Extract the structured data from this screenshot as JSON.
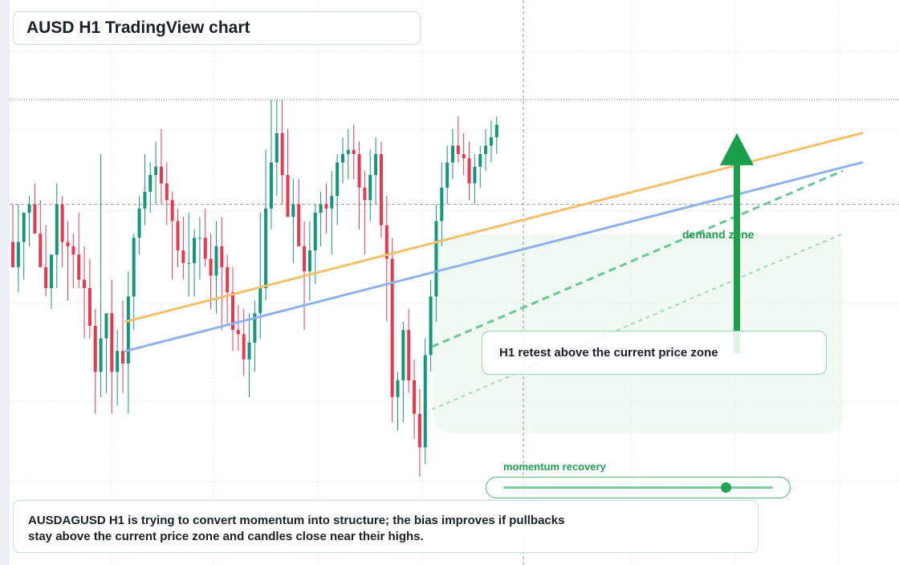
{
  "header": {
    "title": "AUSD H1 TradingView chart"
  },
  "annotations": {
    "callout": "H1 retest above the current price zone",
    "zone_label": "demand zone",
    "momentum_label": "momentum recovery",
    "momentum_level": 0.82
  },
  "summary": {
    "text": "AUSDAGUSD H1 is trying to convert momentum into structure; the bias improves if pullbacks stay above the current price zone and candles close near their highs."
  },
  "colors": {
    "bull": "#14967a",
    "bear": "#e8384f",
    "ma_fast": "#f5c06b",
    "ma_slow": "#8fb2ec",
    "forecast": "#5cc386",
    "arrow": "#1aa04a",
    "grid": "#dfe5ee"
  },
  "chart_data": {
    "type": "candlestick",
    "price_range": [
      0,
      100
    ],
    "resistance_level": 95,
    "current_price_level": 70,
    "ma_fast": {
      "start": 42,
      "end": 87
    },
    "ma_slow": {
      "start": 35,
      "end": 80
    },
    "forecast_paths": [
      {
        "style": "dashed",
        "start": 36,
        "end": 78
      },
      {
        "style": "dotted",
        "start": 21,
        "end": 63
      }
    ],
    "arrow": {
      "from": 35,
      "to": 87
    },
    "candles": [
      {
        "o": 61,
        "h": 70,
        "l": 55,
        "c": 55
      },
      {
        "o": 55,
        "h": 70,
        "l": 49,
        "c": 61
      },
      {
        "o": 61,
        "h": 68,
        "l": 52,
        "c": 68
      },
      {
        "o": 68,
        "h": 72,
        "l": 60,
        "c": 70
      },
      {
        "o": 70,
        "h": 75,
        "l": 63,
        "c": 63
      },
      {
        "o": 63,
        "h": 71,
        "l": 55,
        "c": 55
      },
      {
        "o": 55,
        "h": 65,
        "l": 48,
        "c": 50
      },
      {
        "o": 50,
        "h": 58,
        "l": 45,
        "c": 58
      },
      {
        "o": 58,
        "h": 75,
        "l": 50,
        "c": 70
      },
      {
        "o": 70,
        "h": 72,
        "l": 55,
        "c": 61
      },
      {
        "o": 61,
        "h": 66,
        "l": 47,
        "c": 60
      },
      {
        "o": 60,
        "h": 63,
        "l": 50,
        "c": 58
      },
      {
        "o": 58,
        "h": 68,
        "l": 50,
        "c": 52
      },
      {
        "o": 52,
        "h": 60,
        "l": 38,
        "c": 50
      },
      {
        "o": 50,
        "h": 57,
        "l": 38,
        "c": 41
      },
      {
        "o": 41,
        "h": 45,
        "l": 20,
        "c": 30
      },
      {
        "o": 30,
        "h": 82,
        "l": 24,
        "c": 38
      },
      {
        "o": 38,
        "h": 44,
        "l": 25,
        "c": 44
      },
      {
        "o": 44,
        "h": 52,
        "l": 20,
        "c": 30
      },
      {
        "o": 30,
        "h": 40,
        "l": 22,
        "c": 35
      },
      {
        "o": 35,
        "h": 47,
        "l": 25,
        "c": 32
      },
      {
        "o": 32,
        "h": 54,
        "l": 20,
        "c": 48
      },
      {
        "o": 48,
        "h": 63,
        "l": 40,
        "c": 62
      },
      {
        "o": 62,
        "h": 72,
        "l": 58,
        "c": 69
      },
      {
        "o": 69,
        "h": 82,
        "l": 65,
        "c": 73
      },
      {
        "o": 73,
        "h": 80,
        "l": 68,
        "c": 77
      },
      {
        "o": 77,
        "h": 85,
        "l": 70,
        "c": 79
      },
      {
        "o": 79,
        "h": 88,
        "l": 70,
        "c": 75
      },
      {
        "o": 75,
        "h": 80,
        "l": 65,
        "c": 71
      },
      {
        "o": 71,
        "h": 73,
        "l": 52,
        "c": 66
      },
      {
        "o": 66,
        "h": 69,
        "l": 55,
        "c": 59
      },
      {
        "o": 59,
        "h": 67,
        "l": 52,
        "c": 56
      },
      {
        "o": 56,
        "h": 68,
        "l": 48,
        "c": 56
      },
      {
        "o": 56,
        "h": 64,
        "l": 48,
        "c": 62
      },
      {
        "o": 62,
        "h": 67,
        "l": 52,
        "c": 62
      },
      {
        "o": 62,
        "h": 69,
        "l": 55,
        "c": 57
      },
      {
        "o": 57,
        "h": 63,
        "l": 45,
        "c": 53
      },
      {
        "o": 53,
        "h": 66,
        "l": 44,
        "c": 60
      },
      {
        "o": 60,
        "h": 67,
        "l": 40,
        "c": 55
      },
      {
        "o": 55,
        "h": 58,
        "l": 41,
        "c": 49
      },
      {
        "o": 49,
        "h": 55,
        "l": 35,
        "c": 40
      },
      {
        "o": 40,
        "h": 46,
        "l": 35,
        "c": 39
      },
      {
        "o": 39,
        "h": 45,
        "l": 29,
        "c": 33
      },
      {
        "o": 33,
        "h": 44,
        "l": 24,
        "c": 37
      },
      {
        "o": 37,
        "h": 47,
        "l": 30,
        "c": 44
      },
      {
        "o": 44,
        "h": 68,
        "l": 38,
        "c": 50
      },
      {
        "o": 50,
        "h": 83,
        "l": 47,
        "c": 69
      },
      {
        "o": 69,
        "h": 95,
        "l": 64,
        "c": 80
      },
      {
        "o": 80,
        "h": 95,
        "l": 72,
        "c": 87
      },
      {
        "o": 87,
        "h": 95,
        "l": 70,
        "c": 77
      },
      {
        "o": 77,
        "h": 88,
        "l": 67,
        "c": 67
      },
      {
        "o": 67,
        "h": 76,
        "l": 56,
        "c": 70
      },
      {
        "o": 70,
        "h": 76,
        "l": 60,
        "c": 60
      },
      {
        "o": 60,
        "h": 66,
        "l": 40,
        "c": 54
      },
      {
        "o": 54,
        "h": 66,
        "l": 47,
        "c": 59
      },
      {
        "o": 59,
        "h": 70,
        "l": 51,
        "c": 68
      },
      {
        "o": 68,
        "h": 73,
        "l": 60,
        "c": 70
      },
      {
        "o": 70,
        "h": 75,
        "l": 63,
        "c": 69
      },
      {
        "o": 69,
        "h": 78,
        "l": 58,
        "c": 72
      },
      {
        "o": 72,
        "h": 82,
        "l": 65,
        "c": 80
      },
      {
        "o": 80,
        "h": 86,
        "l": 75,
        "c": 82
      },
      {
        "o": 82,
        "h": 88,
        "l": 76,
        "c": 83
      },
      {
        "o": 83,
        "h": 89,
        "l": 76,
        "c": 82
      },
      {
        "o": 82,
        "h": 85,
        "l": 64,
        "c": 74
      },
      {
        "o": 74,
        "h": 78,
        "l": 58,
        "c": 71
      },
      {
        "o": 71,
        "h": 83,
        "l": 66,
        "c": 77
      },
      {
        "o": 77,
        "h": 86,
        "l": 70,
        "c": 82
      },
      {
        "o": 82,
        "h": 85,
        "l": 62,
        "c": 65
      },
      {
        "o": 65,
        "h": 72,
        "l": 42,
        "c": 57
      },
      {
        "o": 57,
        "h": 62,
        "l": 18,
        "c": 24
      },
      {
        "o": 24,
        "h": 30,
        "l": 16,
        "c": 28
      },
      {
        "o": 28,
        "h": 42,
        "l": 18,
        "c": 40
      },
      {
        "o": 40,
        "h": 45,
        "l": 25,
        "c": 28
      },
      {
        "o": 28,
        "h": 33,
        "l": 14,
        "c": 20
      },
      {
        "o": 20,
        "h": 26,
        "l": 5,
        "c": 12
      },
      {
        "o": 12,
        "h": 38,
        "l": 8,
        "c": 34
      },
      {
        "o": 34,
        "h": 52,
        "l": 30,
        "c": 48
      },
      {
        "o": 48,
        "h": 70,
        "l": 42,
        "c": 66
      },
      {
        "o": 66,
        "h": 80,
        "l": 60,
        "c": 74
      },
      {
        "o": 74,
        "h": 84,
        "l": 70,
        "c": 80
      },
      {
        "o": 80,
        "h": 88,
        "l": 76,
        "c": 84
      },
      {
        "o": 84,
        "h": 91,
        "l": 80,
        "c": 82
      },
      {
        "o": 82,
        "h": 87,
        "l": 77,
        "c": 81
      },
      {
        "o": 81,
        "h": 85,
        "l": 71,
        "c": 75
      },
      {
        "o": 75,
        "h": 82,
        "l": 70,
        "c": 79
      },
      {
        "o": 79,
        "h": 84,
        "l": 74,
        "c": 82
      },
      {
        "o": 82,
        "h": 88,
        "l": 78,
        "c": 84
      },
      {
        "o": 84,
        "h": 90,
        "l": 80,
        "c": 86
      },
      {
        "o": 86,
        "h": 91,
        "l": 82,
        "c": 89
      }
    ]
  }
}
